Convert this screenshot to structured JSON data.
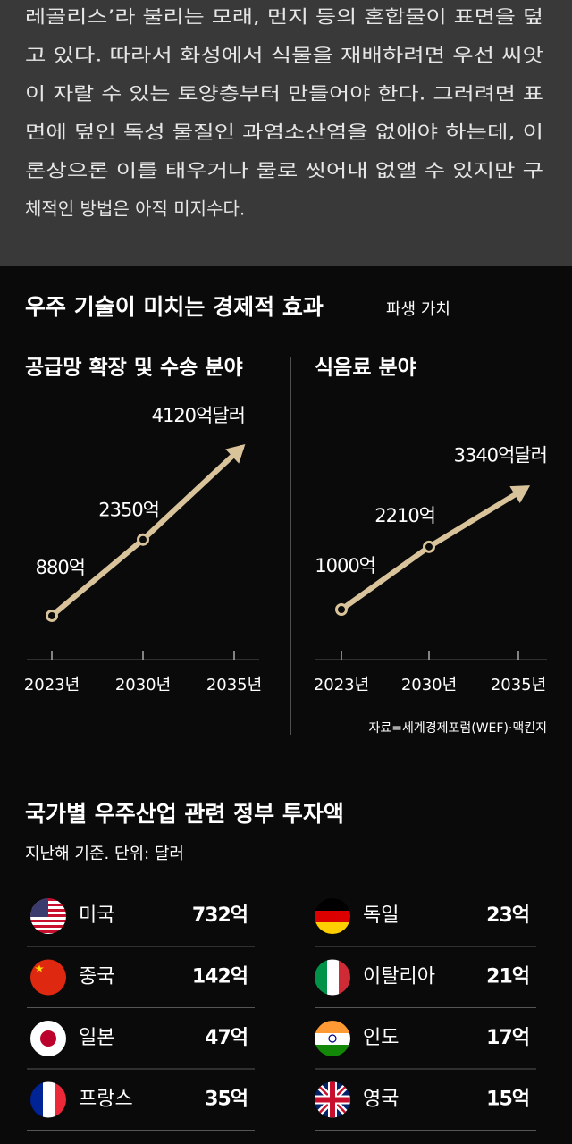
{
  "article": {
    "lines": [
      "레골리스’라 불리는 모래, 먼지 등의 혼합물이 표면을 덮",
      "고 있다. 따라서 화성에서 식물을 재배하려면 우선 씨앗",
      "이 자랄 수 있는 토양층부터 만들어야 한다. 그러려면 표",
      "면에 덮인 독성 물질인 과염소산염을 없애야 하는데, 이",
      "론상으론 이를 태우거나 물로 씻어내 없앨 수 있지만 구",
      "체적인 방법은 아직 미지수다."
    ]
  },
  "infographic": {
    "title": "우주 기술이 미치는 경제적 효과",
    "subtitle": "파생 가치",
    "source": "자료=세계경제포럼(WEF)·맥킨지"
  },
  "chart_data": [
    {
      "type": "line",
      "title": "공급망 확장 및 수송 분야",
      "categories": [
        "2023년",
        "2030년",
        "2035년"
      ],
      "values": [
        880,
        2350,
        4120
      ],
      "value_labels": [
        "880억",
        "2350억",
        "4120억달러"
      ],
      "color": "#d9c39a"
    },
    {
      "type": "line",
      "title": "식음료 분야",
      "categories": [
        "2023년",
        "2030년",
        "2035년"
      ],
      "values": [
        1000,
        2210,
        3340
      ],
      "value_labels": [
        "1000억",
        "2210억",
        "3340억달러"
      ],
      "color": "#d9c39a"
    }
  ],
  "investment": {
    "title": "국가별 우주산업 관련 정부 투자액",
    "subtitle": "지난해 기준. 단위: 달러",
    "rows": [
      {
        "country": "미국",
        "amount": "732억"
      },
      {
        "country": "중국",
        "amount": "142억"
      },
      {
        "country": "일본",
        "amount": "47억"
      },
      {
        "country": "프랑스",
        "amount": "35억"
      },
      {
        "country": "독일",
        "amount": "23억"
      },
      {
        "country": "이탈리아",
        "amount": "21억"
      },
      {
        "country": "인도",
        "amount": "17억"
      },
      {
        "country": "영국",
        "amount": "15억"
      }
    ]
  }
}
